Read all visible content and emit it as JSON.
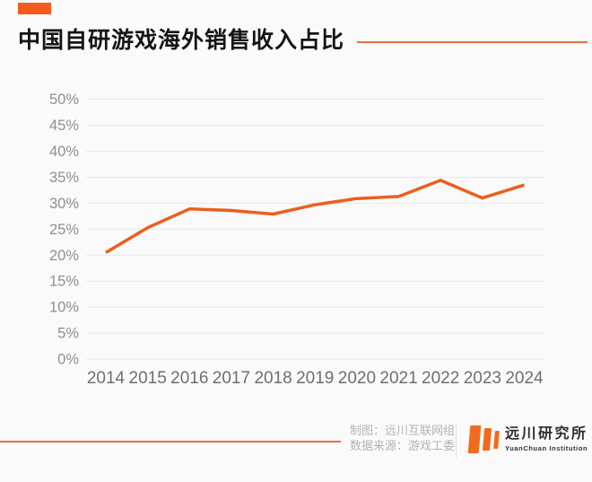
{
  "header": {
    "title": "中国自研游戏海外销售收入占比"
  },
  "chart_data": {
    "type": "line",
    "title": "中国自研游戏海外销售收入占比",
    "categories": [
      "2014",
      "2015",
      "2016",
      "2017",
      "2018",
      "2019",
      "2020",
      "2021",
      "2022",
      "2023",
      "2024"
    ],
    "values": [
      20.5,
      25.3,
      28.9,
      28.6,
      27.9,
      29.7,
      30.9,
      31.3,
      34.4,
      31.0,
      33.5
    ],
    "unit": "%",
    "ylim": [
      0,
      50
    ],
    "ytick_step": 5,
    "ytick_labels": [
      "0%",
      "5%",
      "10%",
      "15%",
      "20%",
      "25%",
      "30%",
      "35%",
      "40%",
      "45%",
      "50%"
    ],
    "grid": true,
    "legend_position": "none",
    "line_color": "#eb5f1d",
    "gridline_color": "#e8e8e8",
    "ytick_color": "#8f8f8f",
    "xtick_color": "#6f6f6f"
  },
  "footer": {
    "credit_line1": "制图：远川互联网组",
    "credit_line2": "数据来源：游戏工委",
    "logo_cn": "远川研究所",
    "logo_en": "YuanChuan Institution"
  },
  "colors": {
    "accent": "#f75a1d",
    "title_rule": "#e0703f",
    "footer_rule": "#ed6d35",
    "logo_orange": "#f26a1e",
    "background": "#fafafa"
  }
}
